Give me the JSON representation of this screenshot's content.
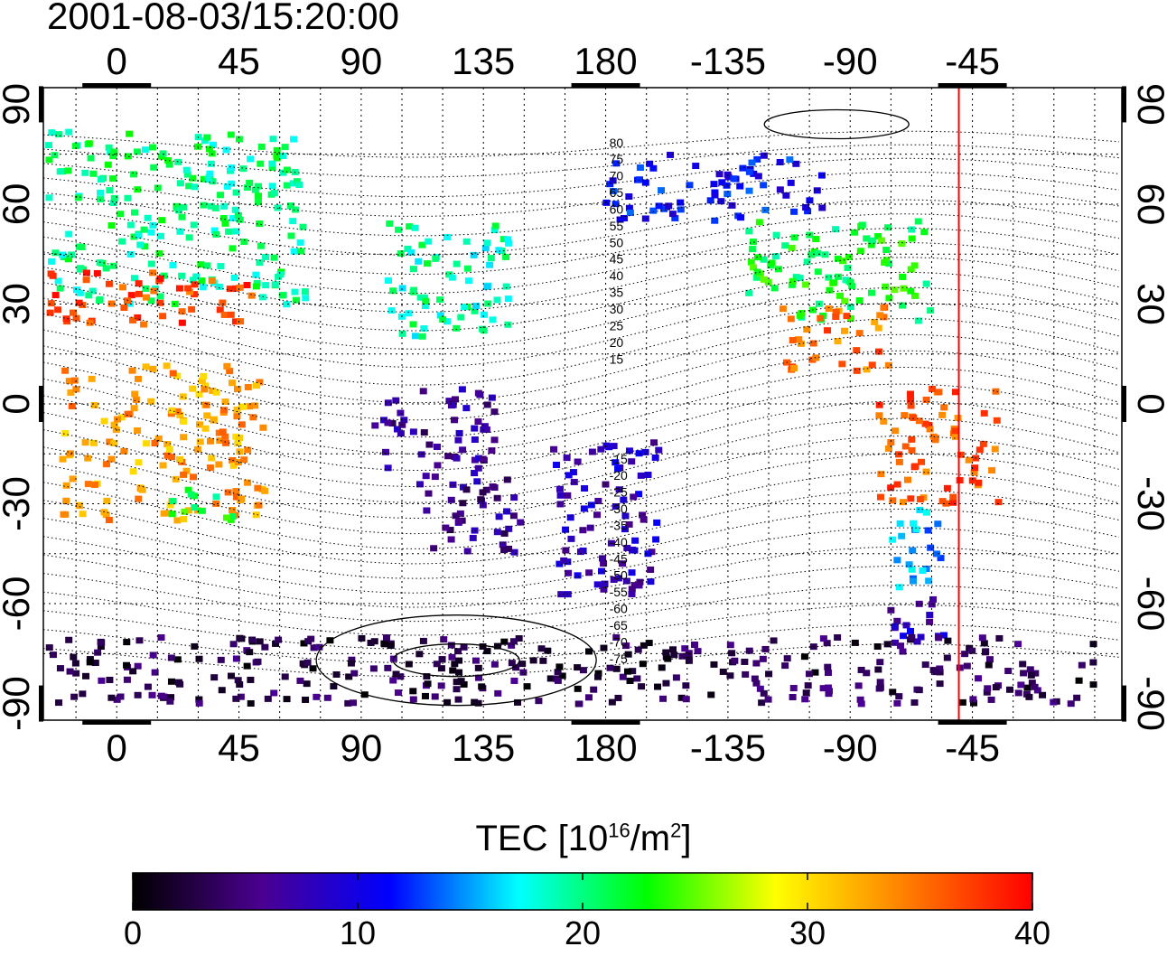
{
  "title": "2001-08-03/15:20:00",
  "axes": {
    "lon_ticks_top": [
      "0",
      "45",
      "90",
      "135",
      "180",
      "-135",
      "-90",
      "-45"
    ],
    "lon_ticks_bottom": [
      "0",
      "45",
      "90",
      "135",
      "180",
      "-135",
      "-90",
      "-45"
    ],
    "lat_ticks": [
      "90",
      "60",
      "30",
      "0",
      "-30",
      "-60",
      "-90"
    ]
  },
  "contour_labels": [
    "80",
    "75",
    "70",
    "65",
    "60",
    "55",
    "50",
    "45",
    "40",
    "35",
    "30",
    "25",
    "20",
    "15",
    "-15",
    "-20",
    "-25",
    "-30",
    "-35",
    "-40",
    "-45",
    "-50",
    "-55",
    "-60",
    "-65",
    "-70",
    "-75"
  ],
  "colorbar": {
    "title_main": "TEC  [10",
    "title_exp1": "16",
    "title_mid": "/m",
    "title_exp2": "2",
    "title_end": "]",
    "min": 0,
    "max": 40,
    "tick_labels": [
      "0",
      "10",
      "20",
      "30",
      "40"
    ]
  },
  "colors": {
    "terminator": "#ff0000",
    "gradient": [
      "#000000",
      "#4b0090",
      "#0000ff",
      "#00ffff",
      "#00ff00",
      "#ffff00",
      "#ff8000",
      "#ff0000"
    ]
  },
  "chart_data": {
    "type": "heatmap",
    "terminator_lon": -50,
    "x_range_lon": [
      -27,
      370
    ],
    "y_range_lat": [
      -95,
      95
    ],
    "regions": [
      {
        "lon": [
          -25,
          70
        ],
        "lat": [
          30,
          82
        ],
        "tec": 20
      },
      {
        "lon": [
          -25,
          50
        ],
        "lat": [
          24,
          40
        ],
        "tec": 37
      },
      {
        "lon": [
          -20,
          55
        ],
        "lat": [
          -35,
          12
        ],
        "tec": 33
      },
      {
        "lon": [
          20,
          45
        ],
        "lat": [
          -35,
          -25
        ],
        "tec": 22
      },
      {
        "lon": [
          100,
          145
        ],
        "lat": [
          20,
          55
        ],
        "tec": 19
      },
      {
        "lon": [
          95,
          140
        ],
        "lat": [
          -20,
          5
        ],
        "tec": 6
      },
      {
        "lon": [
          110,
          150
        ],
        "lat": [
          -45,
          -20
        ],
        "tec": 6
      },
      {
        "lon": [
          160,
          200
        ],
        "lat": [
          -58,
          -10
        ],
        "tec": 8
      },
      {
        "lon": [
          -180,
          -100
        ],
        "lat": [
          55,
          75
        ],
        "tec": 11
      },
      {
        "lon": [
          -130,
          -60
        ],
        "lat": [
          25,
          55
        ],
        "tec": 22
      },
      {
        "lon": [
          -115,
          -75
        ],
        "lat": [
          10,
          30
        ],
        "tec": 35
      },
      {
        "lon": [
          -80,
          -35
        ],
        "lat": [
          -30,
          5
        ],
        "tec": 36
      },
      {
        "lon": [
          -75,
          -55
        ],
        "lat": [
          -55,
          -30
        ],
        "tec": 15
      },
      {
        "lon": [
          -75,
          -55
        ],
        "lat": [
          -75,
          -55
        ],
        "tec": 8
      },
      {
        "lon": [
          -25,
          360
        ],
        "lat": [
          -90,
          -70
        ],
        "tec": 3
      }
    ]
  }
}
